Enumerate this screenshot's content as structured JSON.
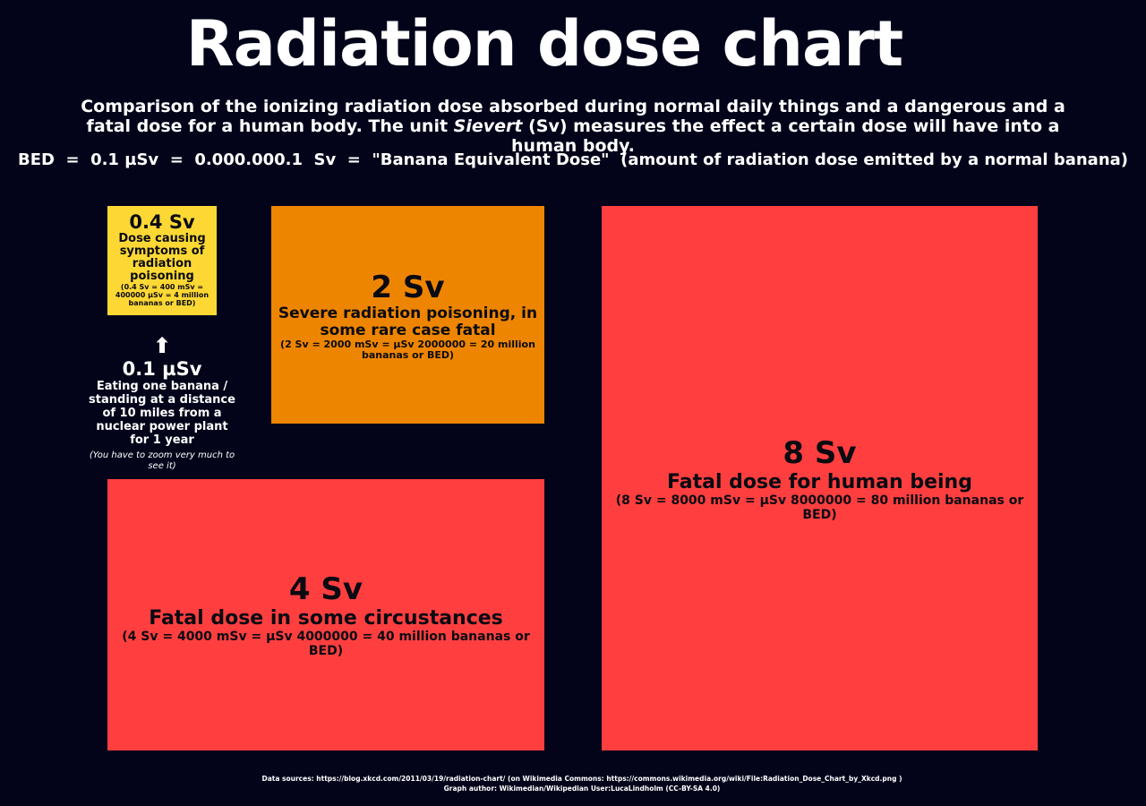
{
  "header": {
    "title": "Radiation dose chart",
    "description_before": "Comparison of the ionizing radiation dose absorbed during normal daily things and a dangerous and a fatal dose for a human body. The unit",
    "description_emphasis": "Sievert",
    "description_after": "(Sv) measures the effect a certain dose will have into a human body.",
    "bed_line": "BED  =  0.1 µSv  =  0.000.000.1  Sv  =  \"Banana Equivalent Dose\"  (amount of radiation dose emitted by a normal banana)"
  },
  "boxes": [
    {
      "label": "0.4 Sv",
      "caption": "Dose causing symptoms of radiation poisoning",
      "detail": "(0.4 Sv = 400 mSv = 400000 µSv = 4 million bananas or BED)"
    },
    {
      "label": "2 Sv",
      "caption": "Severe radiation poisoning, in some rare case fatal",
      "detail": "(2 Sv = 2000 mSv = µSv 2000000 = 20 million bananas or BED)"
    },
    {
      "label": "4 Sv",
      "caption": "Fatal dose in some circustances",
      "detail": "(4 Sv = 4000 mSv = µSv 4000000 = 40 million bananas or BED)"
    },
    {
      "label": "8 Sv",
      "caption": "Fatal dose for human being",
      "detail": "(8 Sv = 8000 mSv = µSv 8000000 = 80 million bananas or BED)"
    }
  ],
  "banana": {
    "label": "0.1 µSv",
    "caption": "Eating one banana / standing at a distance of 10 miles from a nuclear power plant for 1 year",
    "note": "(You have to zoom very much to see it)"
  },
  "footer": {
    "sources": "Data sources:  https://blog.xkcd.com/2011/03/19/radiation-chart/  (on Wikimedia Commons: https://commons.wikimedia.org/wiki/File:Radiation_Dose_Chart_by_Xkcd.png )",
    "author": "Graph author:   Wikimedian/Wikipedian  User:LucaLindholm (CC-BY-SA 4.0)"
  }
}
